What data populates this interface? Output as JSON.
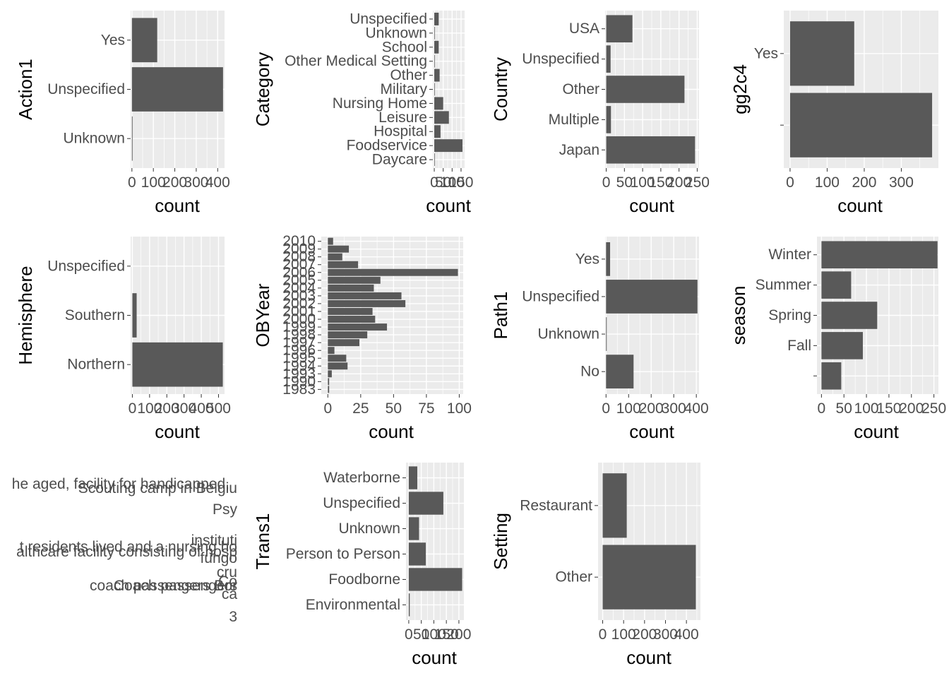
{
  "chart_data": [
    {
      "type": "bar",
      "orientation": "horizontal",
      "ylabel": "Action1",
      "xlabel": "count",
      "categories": [
        "Unknown",
        "Unspecified",
        "Yes"
      ],
      "values": [
        3,
        425,
        118
      ],
      "xlim": [
        -6,
        432
      ],
      "xticks": [
        0,
        100,
        200,
        300,
        400
      ],
      "xtick_labels": [
        "0",
        "100",
        "200",
        "300",
        "400"
      ]
    },
    {
      "type": "bar",
      "orientation": "horizontal",
      "ylabel": "Category",
      "xlabel": "count",
      "categories": [
        "Daycare",
        "Foodservice",
        "Hospital",
        "Leisure",
        "Nursing Home",
        "Military",
        "Other",
        "Other Medical Setting",
        "School",
        "Unknown",
        "Unspecified"
      ],
      "values": [
        3,
        158,
        35,
        82,
        50,
        3,
        30,
        3,
        25,
        3,
        25
      ],
      "xlim": [
        -8,
        170
      ],
      "xticks": [
        0,
        50,
        100,
        150
      ],
      "xtick_labels": [
        "0",
        "50",
        "100",
        "150"
      ]
    },
    {
      "type": "bar",
      "orientation": "horizontal",
      "ylabel": "Country",
      "xlabel": "count",
      "categories": [
        "Japan",
        "Multiple",
        "Other",
        "Unspecified",
        "USA"
      ],
      "values": [
        244,
        13,
        215,
        12,
        72
      ],
      "xlim": [
        -3,
        255
      ],
      "xticks": [
        0,
        50,
        100,
        150,
        200,
        250
      ],
      "xtick_labels": [
        "0",
        "50",
        "100",
        "150",
        "200",
        "250"
      ]
    },
    {
      "type": "bar",
      "orientation": "horizontal",
      "ylabel": "gg2c4",
      "xlabel": "count",
      "categories": [
        "",
        "Yes"
      ],
      "values": [
        383,
        173
      ],
      "xlim": [
        -17,
        400
      ],
      "xticks": [
        0,
        100,
        200,
        300
      ],
      "xtick_labels": [
        "0",
        "100",
        "200",
        "300"
      ]
    },
    {
      "type": "bar",
      "orientation": "horizontal",
      "ylabel": "Hemisphere",
      "xlabel": "count",
      "categories": [
        "Northern",
        "Southern",
        "Unspecified"
      ],
      "values": [
        525,
        25,
        0
      ],
      "xlim": [
        -10,
        535
      ],
      "xticks": [
        0,
        100,
        200,
        300,
        400,
        500
      ],
      "xtick_labels": [
        "0",
        "100",
        "200",
        "300",
        "400",
        "500"
      ]
    },
    {
      "type": "bar",
      "orientation": "horizontal",
      "ylabel": "OBYear",
      "xlabel": "count",
      "categories": [
        "1983",
        "1990",
        "1993",
        "1994",
        "1995",
        "1996",
        "1997",
        "1998",
        "1999",
        "2000",
        "2001",
        "2002",
        "2003",
        "2004",
        "2005",
        "2006",
        "2007",
        "2008",
        "2009",
        "2010"
      ],
      "values": [
        1,
        1,
        3,
        15,
        14,
        5,
        24,
        30,
        45,
        36,
        34,
        59,
        56,
        35,
        40,
        99,
        23,
        11,
        16,
        4
      ],
      "xlim": [
        -5,
        103
      ],
      "xticks": [
        0,
        25,
        50,
        75,
        100
      ],
      "xtick_labels": [
        "0",
        "25",
        "50",
        "75",
        "100"
      ]
    },
    {
      "type": "bar",
      "orientation": "horizontal",
      "ylabel": "Path1",
      "xlabel": "count",
      "categories": [
        "No",
        "Unknown",
        "Unspecified",
        "Yes"
      ],
      "values": [
        122,
        3,
        405,
        18
      ],
      "xlim": [
        -4,
        412
      ],
      "xticks": [
        0,
        100,
        200,
        300,
        400
      ],
      "xtick_labels": [
        "0",
        "100",
        "200",
        "300",
        "400"
      ]
    },
    {
      "type": "bar",
      "orientation": "horizontal",
      "ylabel": "season",
      "xlabel": "count",
      "categories": [
        "",
        "Fall",
        "Spring",
        "Summer",
        "Winter"
      ],
      "values": [
        44,
        92,
        124,
        66,
        258
      ],
      "xlim": [
        -10,
        260
      ],
      "xticks": [
        0,
        50,
        100,
        150,
        200,
        250
      ],
      "xtick_labels": [
        "0",
        "50",
        "100",
        "150",
        "200",
        "250"
      ]
    },
    {
      "type": "bar",
      "orientation": "horizontal",
      "ylabel": "Trans1",
      "xlabel": "count",
      "categories": [
        "Environmental",
        "Foodborne",
        "Person to Person",
        "Unknown",
        "Unspecified",
        "Waterborne"
      ],
      "values": [
        4,
        213,
        68,
        41,
        138,
        34
      ],
      "xlim": [
        -11,
        220
      ],
      "xticks": [
        0,
        50,
        100,
        150,
        200
      ],
      "xtick_labels": [
        "0",
        "50",
        "100",
        "150",
        "200"
      ]
    },
    {
      "type": "bar",
      "orientation": "horizontal",
      "ylabel": "Setting",
      "xlabel": "count",
      "categories": [
        "Other",
        "Restaurant"
      ],
      "values": [
        445,
        115
      ],
      "xlim": [
        -22,
        467
      ],
      "xticks": [
        0,
        100,
        200,
        300,
        400
      ],
      "xtick_labels": [
        "0",
        "100",
        "200",
        "300",
        "400"
      ]
    }
  ],
  "overflow_labels": [
    {
      "text": "he aged, facility for handicapped,"
    },
    {
      "text": "Scouting camp in Belgiu"
    },
    {
      "text": "Psy"
    },
    {
      "text": "instituti"
    },
    {
      "text": "t residents lived and a nursing ho"
    },
    {
      "text": "althcare facility consisting of hosp"
    },
    {
      "text": "fungo"
    },
    {
      "text": "cru"
    },
    {
      "text": "Co"
    },
    {
      "text": "Coach passengers"
    },
    {
      "text": "coach passengers Bor"
    },
    {
      "text": "ca"
    },
    {
      "text": "3"
    }
  ]
}
